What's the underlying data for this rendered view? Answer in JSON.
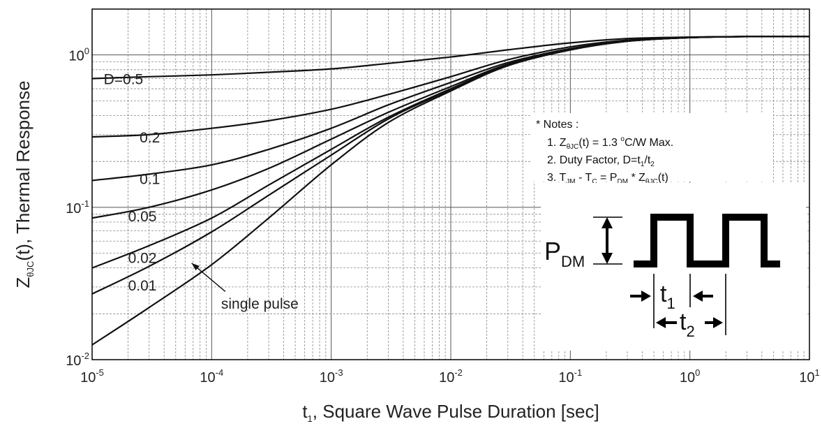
{
  "chart_data": {
    "type": "line",
    "title": "",
    "xscale": "log",
    "yscale": "log",
    "xlim": [
      1e-05,
      10
    ],
    "ylim": [
      0.01,
      2
    ],
    "grid": true,
    "x_ticks": [
      {
        "base": "10",
        "exp": "-5",
        "value": 1e-05
      },
      {
        "base": "10",
        "exp": "-4",
        "value": 0.0001
      },
      {
        "base": "10",
        "exp": "-3",
        "value": 0.001
      },
      {
        "base": "10",
        "exp": "-2",
        "value": 0.01
      },
      {
        "base": "10",
        "exp": "-1",
        "value": 0.1
      },
      {
        "base": "10",
        "exp": "0",
        "value": 1
      },
      {
        "base": "10",
        "exp": "1",
        "value": 10
      }
    ],
    "y_ticks": [
      {
        "base": "10",
        "exp": "-2",
        "value": 0.01
      },
      {
        "base": "10",
        "exp": "-1",
        "value": 0.1
      },
      {
        "base": "10",
        "exp": "0",
        "value": 1
      }
    ],
    "xlabel": {
      "main": "t",
      "sub": "1",
      "rest": ", Square Wave Pulse Duration [sec]"
    },
    "ylabel": {
      "main": "Z",
      "sub": "θJC",
      "rest": "(t),  Thermal Response"
    },
    "x": [
      1e-05,
      3e-05,
      0.0001,
      0.0003,
      0.001,
      0.003,
      0.01,
      0.03,
      0.1,
      0.3,
      1,
      3,
      10
    ],
    "series": [
      {
        "name": "D=0.5",
        "values": [
          0.7,
          0.72,
          0.74,
          0.77,
          0.81,
          0.88,
          0.97,
          1.08,
          1.2,
          1.28,
          1.31,
          1.32,
          1.32
        ]
      },
      {
        "name": "0.2",
        "values": [
          0.29,
          0.3,
          0.33,
          0.37,
          0.44,
          0.55,
          0.72,
          0.93,
          1.13,
          1.25,
          1.3,
          1.32,
          1.32
        ]
      },
      {
        "name": "0.1",
        "values": [
          0.15,
          0.165,
          0.19,
          0.24,
          0.33,
          0.47,
          0.66,
          0.89,
          1.1,
          1.24,
          1.3,
          1.32,
          1.32
        ]
      },
      {
        "name": "0.05",
        "values": [
          0.085,
          0.1,
          0.13,
          0.18,
          0.28,
          0.42,
          0.62,
          0.87,
          1.09,
          1.23,
          1.3,
          1.32,
          1.32
        ]
      },
      {
        "name": "0.02",
        "values": [
          0.04,
          0.056,
          0.085,
          0.14,
          0.24,
          0.39,
          0.6,
          0.86,
          1.08,
          1.23,
          1.3,
          1.32,
          1.32
        ]
      },
      {
        "name": "0.01",
        "values": [
          0.027,
          0.041,
          0.069,
          0.12,
          0.22,
          0.38,
          0.59,
          0.85,
          1.08,
          1.23,
          1.3,
          1.32,
          1.32
        ]
      },
      {
        "name": "single pulse",
        "values": [
          0.0125,
          0.022,
          0.042,
          0.085,
          0.19,
          0.36,
          0.58,
          0.85,
          1.08,
          1.23,
          1.3,
          1.32,
          1.32
        ]
      }
    ],
    "annotations": {
      "curve_labels": [
        {
          "text": "D=0.5",
          "series": "D=0.5",
          "x": 1.25e-05,
          "y": 0.7
        },
        {
          "text": "0.2",
          "series": "0.2",
          "x": 2.5e-05,
          "y": 0.29
        },
        {
          "text": "0.1",
          "series": "0.1",
          "x": 2.5e-05,
          "y": 0.155
        },
        {
          "text": "0.05",
          "series": "0.05",
          "x": 2e-05,
          "y": 0.088
        },
        {
          "text": "0.02",
          "series": "0.02",
          "x": 2e-05,
          "y": 0.047
        },
        {
          "text": "0.01",
          "series": "0.01",
          "x": 2e-05,
          "y": 0.031
        },
        {
          "text": "single pulse",
          "series": "single pulse",
          "x": 0.00012,
          "y": 0.0235
        }
      ],
      "arrow": {
        "from": [
          0.00013,
          0.028
        ],
        "to": [
          6.8e-05,
          0.043
        ]
      },
      "notes": {
        "title": "* Notes :",
        "lines": [
          {
            "parts": [
              [
                "1. Z",
                ""
              ],
              [
                "θJC",
                "sub"
              ],
              [
                "(t) = 1.3 ",
                ""
              ],
              [
                "o",
                "sup"
              ],
              [
                "C/W Max.",
                ""
              ]
            ]
          },
          {
            "parts": [
              [
                "2. Duty Factor, D=t",
                ""
              ],
              [
                "1",
                "sub"
              ],
              [
                "/t",
                ""
              ],
              [
                "2",
                "sub"
              ]
            ]
          },
          {
            "parts": [
              [
                "3. T",
                ""
              ],
              [
                "JM",
                "sub"
              ],
              [
                " - T",
                ""
              ],
              [
                "C",
                "sub"
              ],
              [
                " = P",
                ""
              ],
              [
                "DM",
                "sub"
              ],
              [
                " * Z",
                ""
              ],
              [
                "θJC",
                "sub"
              ],
              [
                "(t)",
                ""
              ]
            ]
          }
        ]
      },
      "waveform": {
        "p_label": "P",
        "p_sub": "DM",
        "t1_label": "t",
        "t1_sub": "1",
        "t2_label": "t",
        "t2_sub": "2"
      }
    }
  }
}
